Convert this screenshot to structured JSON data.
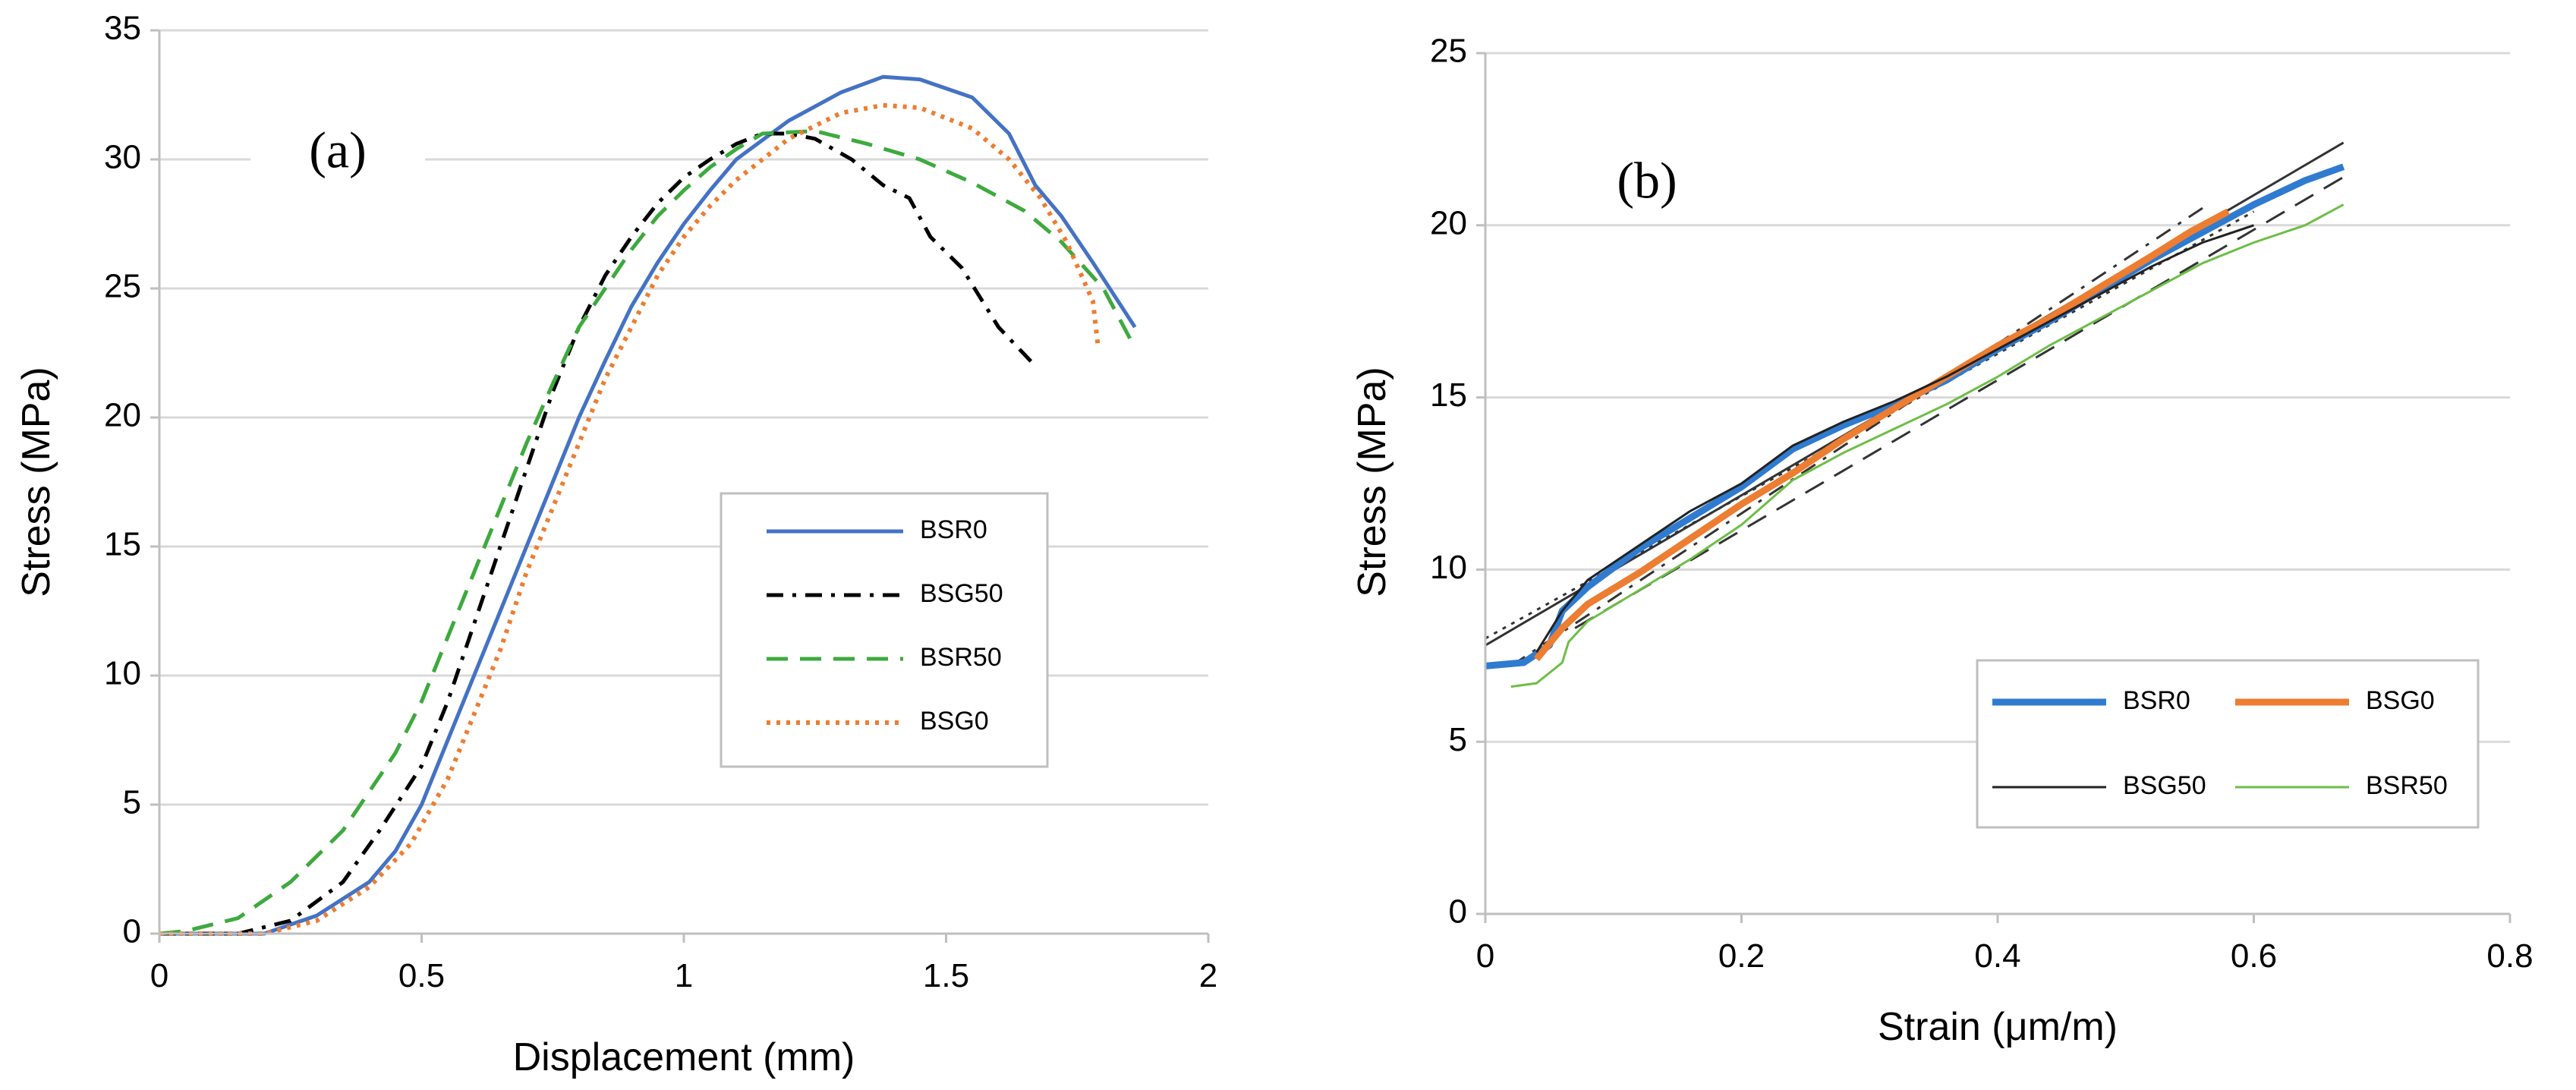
{
  "chart_data": [
    {
      "type": "line",
      "panel_label": "(a)",
      "xlabel": "Displacement (mm)",
      "ylabel": "Stress (MPa)",
      "xlim": [
        0,
        2
      ],
      "ylim": [
        0,
        35
      ],
      "xticks": [
        "0",
        "0.5",
        "1",
        "1.5",
        "2"
      ],
      "yticks": [
        "0",
        "5",
        "10",
        "15",
        "20",
        "25",
        "30",
        "35"
      ],
      "grid": "horizontal",
      "legend_position": "center-right",
      "series": [
        {
          "name": "BSR0",
          "color": "#4472C4",
          "style": "solid",
          "points": [
            [
              0,
              0
            ],
            [
              0.2,
              0
            ],
            [
              0.3,
              0.7
            ],
            [
              0.4,
              2
            ],
            [
              0.45,
              3.2
            ],
            [
              0.5,
              5
            ],
            [
              0.55,
              7.5
            ],
            [
              0.6,
              10
            ],
            [
              0.65,
              12.5
            ],
            [
              0.7,
              15
            ],
            [
              0.75,
              17.5
            ],
            [
              0.8,
              20
            ],
            [
              0.85,
              22.2
            ],
            [
              0.9,
              24.3
            ],
            [
              0.95,
              26
            ],
            [
              1.0,
              27.5
            ],
            [
              1.05,
              28.8
            ],
            [
              1.1,
              30
            ],
            [
              1.2,
              31.5
            ],
            [
              1.3,
              32.6
            ],
            [
              1.38,
              33.2
            ],
            [
              1.45,
              33.1
            ],
            [
              1.55,
              32.4
            ],
            [
              1.62,
              31
            ],
            [
              1.67,
              29
            ],
            [
              1.72,
              27.8
            ],
            [
              1.78,
              26
            ],
            [
              1.86,
              23.5
            ]
          ]
        },
        {
          "name": "BSG50",
          "color": "#000000",
          "style": "dashdot",
          "points": [
            [
              0,
              0
            ],
            [
              0.15,
              0
            ],
            [
              0.25,
              0.5
            ],
            [
              0.35,
              2
            ],
            [
              0.42,
              4
            ],
            [
              0.5,
              6.5
            ],
            [
              0.55,
              9
            ],
            [
              0.6,
              12
            ],
            [
              0.65,
              15
            ],
            [
              0.7,
              18
            ],
            [
              0.75,
              21
            ],
            [
              0.8,
              23.5
            ],
            [
              0.85,
              25.5
            ],
            [
              0.9,
              27
            ],
            [
              0.95,
              28.3
            ],
            [
              1.0,
              29.3
            ],
            [
              1.05,
              30
            ],
            [
              1.1,
              30.6
            ],
            [
              1.15,
              31
            ],
            [
              1.2,
              31
            ],
            [
              1.25,
              30.8
            ],
            [
              1.32,
              30
            ],
            [
              1.38,
              29
            ],
            [
              1.43,
              28.5
            ],
            [
              1.47,
              27
            ],
            [
              1.53,
              25.8
            ],
            [
              1.6,
              23.5
            ],
            [
              1.67,
              22
            ]
          ]
        },
        {
          "name": "BSR50",
          "color": "#3DAA3D",
          "style": "dashed",
          "points": [
            [
              0,
              0
            ],
            [
              0.05,
              0.1
            ],
            [
              0.15,
              0.6
            ],
            [
              0.25,
              2
            ],
            [
              0.35,
              4
            ],
            [
              0.45,
              7
            ],
            [
              0.5,
              9
            ],
            [
              0.55,
              11.5
            ],
            [
              0.6,
              14
            ],
            [
              0.65,
              16.5
            ],
            [
              0.7,
              19
            ],
            [
              0.75,
              21.3
            ],
            [
              0.8,
              23.5
            ],
            [
              0.85,
              25
            ],
            [
              0.9,
              26.5
            ],
            [
              0.95,
              27.8
            ],
            [
              1.0,
              28.8
            ],
            [
              1.05,
              29.7
            ],
            [
              1.1,
              30.4
            ],
            [
              1.15,
              31
            ],
            [
              1.25,
              31.1
            ],
            [
              1.35,
              30.6
            ],
            [
              1.45,
              30
            ],
            [
              1.55,
              29.1
            ],
            [
              1.65,
              28
            ],
            [
              1.72,
              26.8
            ],
            [
              1.8,
              25
            ],
            [
              1.86,
              22.7
            ]
          ]
        },
        {
          "name": "BSG0",
          "color": "#ED7D31",
          "style": "dotted",
          "points": [
            [
              0,
              0
            ],
            [
              0.2,
              0
            ],
            [
              0.3,
              0.5
            ],
            [
              0.4,
              1.8
            ],
            [
              0.48,
              3.5
            ],
            [
              0.55,
              6
            ],
            [
              0.6,
              8.5
            ],
            [
              0.65,
              11
            ],
            [
              0.7,
              14
            ],
            [
              0.75,
              16.5
            ],
            [
              0.8,
              19
            ],
            [
              0.85,
              21.5
            ],
            [
              0.9,
              23.5
            ],
            [
              0.95,
              25.5
            ],
            [
              1.0,
              27
            ],
            [
              1.05,
              28.2
            ],
            [
              1.1,
              29.2
            ],
            [
              1.2,
              30.8
            ],
            [
              1.3,
              31.8
            ],
            [
              1.38,
              32.1
            ],
            [
              1.45,
              32
            ],
            [
              1.55,
              31.2
            ],
            [
              1.62,
              30
            ],
            [
              1.68,
              28.5
            ],
            [
              1.73,
              26.8
            ],
            [
              1.78,
              24.5
            ],
            [
              1.79,
              22.7
            ]
          ]
        }
      ]
    },
    {
      "type": "line",
      "panel_label": "(b)",
      "xlabel": "Strain (μm/m)",
      "ylabel": "Stress (MPa)",
      "xlim": [
        0,
        0.8
      ],
      "ylim": [
        0,
        25
      ],
      "xticks": [
        "0",
        "0.2",
        "0.4",
        "0.6",
        "0.8"
      ],
      "yticks": [
        "0",
        "5",
        "10",
        "15",
        "20",
        "25"
      ],
      "grid": "horizontal",
      "legend_position": "bottom-right",
      "series": [
        {
          "name": "BSR0",
          "color": "#2F7BD0",
          "style": "thick",
          "points": [
            [
              0,
              7.2
            ],
            [
              0.03,
              7.3
            ],
            [
              0.05,
              7.8
            ],
            [
              0.06,
              8.8
            ],
            [
              0.08,
              9.5
            ],
            [
              0.12,
              10.6
            ],
            [
              0.16,
              11.5
            ],
            [
              0.2,
              12.4
            ],
            [
              0.24,
              13.5
            ],
            [
              0.28,
              14.2
            ],
            [
              0.32,
              14.8
            ],
            [
              0.36,
              15.5
            ],
            [
              0.4,
              16.4
            ],
            [
              0.44,
              17.2
            ],
            [
              0.48,
              18.1
            ],
            [
              0.52,
              19
            ],
            [
              0.56,
              19.8
            ],
            [
              0.6,
              20.6
            ],
            [
              0.64,
              21.3
            ],
            [
              0.67,
              21.7
            ]
          ]
        },
        {
          "name": "BSG0",
          "color": "#ED7D31",
          "style": "thick",
          "points": [
            [
              0.04,
              7.4
            ],
            [
              0.06,
              8.3
            ],
            [
              0.08,
              9
            ],
            [
              0.12,
              9.9
            ],
            [
              0.16,
              10.9
            ],
            [
              0.2,
              11.9
            ],
            [
              0.24,
              12.8
            ],
            [
              0.28,
              13.8
            ],
            [
              0.32,
              14.7
            ],
            [
              0.36,
              15.6
            ],
            [
              0.4,
              16.5
            ],
            [
              0.44,
              17.3
            ],
            [
              0.48,
              18.2
            ],
            [
              0.52,
              19.1
            ],
            [
              0.55,
              19.8
            ],
            [
              0.58,
              20.4
            ]
          ]
        },
        {
          "name": "BSG50",
          "color": "#222222",
          "style": "thin",
          "points": [
            [
              0.04,
              7.6
            ],
            [
              0.06,
              8.8
            ],
            [
              0.08,
              9.7
            ],
            [
              0.12,
              10.7
            ],
            [
              0.16,
              11.7
            ],
            [
              0.2,
              12.5
            ],
            [
              0.24,
              13.6
            ],
            [
              0.28,
              14.3
            ],
            [
              0.32,
              14.9
            ],
            [
              0.36,
              15.6
            ],
            [
              0.4,
              16.4
            ],
            [
              0.44,
              17.2
            ],
            [
              0.48,
              18
            ],
            [
              0.52,
              18.8
            ],
            [
              0.56,
              19.5
            ],
            [
              0.6,
              20
            ]
          ]
        },
        {
          "name": "BSR50",
          "color": "#6DBE45",
          "style": "thin",
          "points": [
            [
              0.02,
              6.6
            ],
            [
              0.04,
              6.7
            ],
            [
              0.05,
              7
            ],
            [
              0.06,
              7.3
            ],
            [
              0.065,
              7.9
            ],
            [
              0.08,
              8.5
            ],
            [
              0.12,
              9.4
            ],
            [
              0.16,
              10.3
            ],
            [
              0.2,
              11.3
            ],
            [
              0.24,
              12.6
            ],
            [
              0.28,
              13.4
            ],
            [
              0.32,
              14.1
            ],
            [
              0.36,
              14.8
            ],
            [
              0.4,
              15.6
            ],
            [
              0.44,
              16.5
            ],
            [
              0.48,
              17.3
            ],
            [
              0.52,
              18.1
            ],
            [
              0.56,
              18.9
            ],
            [
              0.6,
              19.5
            ],
            [
              0.64,
              20
            ],
            [
              0.67,
              20.6
            ]
          ]
        }
      ],
      "trendlines": [
        {
          "color": "#333333",
          "style": "solid",
          "from": [
            0,
            7.8
          ],
          "to": [
            0.67,
            22.4
          ]
        },
        {
          "color": "#333333",
          "style": "dashed",
          "from": [
            0.07,
            8.3
          ],
          "to": [
            0.67,
            21.4
          ]
        },
        {
          "color": "#333333",
          "style": "dashdot",
          "from": [
            0.02,
            7.2
          ],
          "to": [
            0.56,
            20.5
          ]
        },
        {
          "color": "#333333",
          "style": "dotted",
          "from": [
            0,
            8.0
          ],
          "to": [
            0.6,
            20.4
          ]
        }
      ]
    }
  ]
}
